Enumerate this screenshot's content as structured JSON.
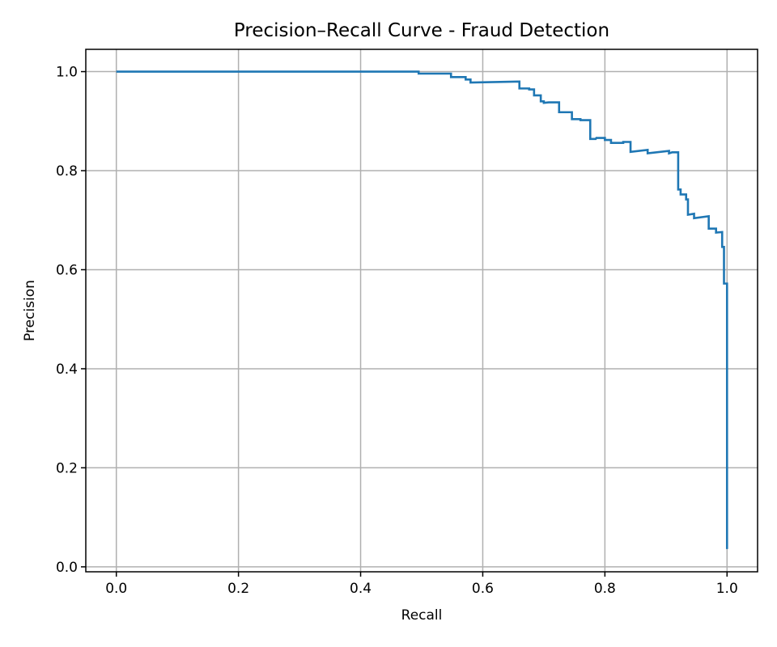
{
  "chart_data": {
    "type": "line",
    "title": "Precision–Recall Curve - Fraud Detection",
    "xlabel": "Recall",
    "ylabel": "Precision",
    "xlim": [
      -0.05,
      1.05
    ],
    "ylim": [
      -0.01,
      1.045
    ],
    "xticks": [
      0.0,
      0.2,
      0.4,
      0.6,
      0.8,
      1.0
    ],
    "xtick_labels": [
      "0.0",
      "0.2",
      "0.4",
      "0.6",
      "0.8",
      "1.0"
    ],
    "yticks": [
      0.0,
      0.2,
      0.4,
      0.6,
      0.8,
      1.0
    ],
    "ytick_labels": [
      "0.0",
      "0.2",
      "0.4",
      "0.6",
      "0.8",
      "1.0"
    ],
    "grid": true,
    "legend": "none",
    "line_color": "#1f77b4",
    "series": [
      {
        "name": "",
        "drawstyle": "steps",
        "points": [
          [
            0.0,
            1.0
          ],
          [
            0.495,
            1.0
          ],
          [
            0.495,
            0.996
          ],
          [
            0.548,
            0.996
          ],
          [
            0.548,
            0.989
          ],
          [
            0.572,
            0.989
          ],
          [
            0.572,
            0.984
          ],
          [
            0.58,
            0.984
          ],
          [
            0.58,
            0.978
          ],
          [
            0.66,
            0.98
          ],
          [
            0.66,
            0.966
          ],
          [
            0.676,
            0.966
          ],
          [
            0.676,
            0.964
          ],
          [
            0.684,
            0.964
          ],
          [
            0.684,
            0.952
          ],
          [
            0.695,
            0.952
          ],
          [
            0.695,
            0.94
          ],
          [
            0.7,
            0.94
          ],
          [
            0.7,
            0.937
          ],
          [
            0.708,
            0.938
          ],
          [
            0.725,
            0.938
          ],
          [
            0.725,
            0.918
          ],
          [
            0.746,
            0.918
          ],
          [
            0.746,
            0.904
          ],
          [
            0.76,
            0.904
          ],
          [
            0.76,
            0.902
          ],
          [
            0.776,
            0.902
          ],
          [
            0.776,
            0.864
          ],
          [
            0.785,
            0.864
          ],
          [
            0.786,
            0.866
          ],
          [
            0.8,
            0.866
          ],
          [
            0.8,
            0.862
          ],
          [
            0.81,
            0.862
          ],
          [
            0.81,
            0.856
          ],
          [
            0.83,
            0.856
          ],
          [
            0.83,
            0.858
          ],
          [
            0.842,
            0.858
          ],
          [
            0.842,
            0.838
          ],
          [
            0.87,
            0.842
          ],
          [
            0.87,
            0.835
          ],
          [
            0.905,
            0.84
          ],
          [
            0.905,
            0.835
          ],
          [
            0.91,
            0.837
          ],
          [
            0.92,
            0.837
          ],
          [
            0.92,
            0.762
          ],
          [
            0.924,
            0.762
          ],
          [
            0.924,
            0.752
          ],
          [
            0.933,
            0.752
          ],
          [
            0.933,
            0.742
          ],
          [
            0.936,
            0.742
          ],
          [
            0.936,
            0.711
          ],
          [
            0.946,
            0.713
          ],
          [
            0.946,
            0.704
          ],
          [
            0.97,
            0.708
          ],
          [
            0.97,
            0.683
          ],
          [
            0.982,
            0.683
          ],
          [
            0.982,
            0.675
          ],
          [
            0.992,
            0.676
          ],
          [
            0.992,
            0.646
          ],
          [
            0.995,
            0.646
          ],
          [
            0.995,
            0.572
          ],
          [
            1.0,
            0.572
          ],
          [
            1.0,
            0.036
          ]
        ]
      }
    ]
  }
}
